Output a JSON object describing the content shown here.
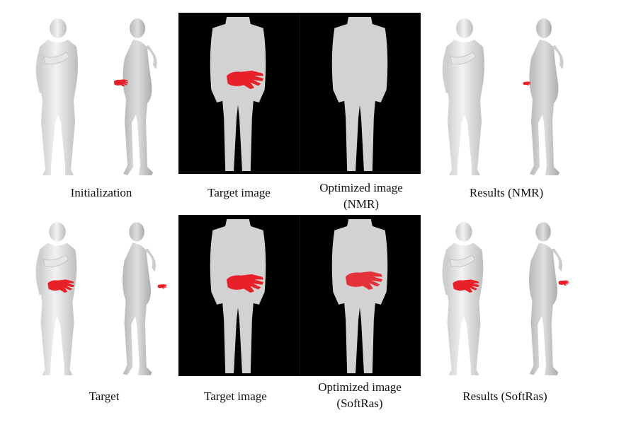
{
  "row1": {
    "captions": {
      "initialization": "Initialization",
      "target_image": "Target image",
      "optimized_line1": "Optimized image",
      "optimized_line2": "(NMR)",
      "results": "Results (NMR)"
    }
  },
  "row2": {
    "captions": {
      "target": "Target",
      "target_image": "Target image",
      "optimized_line1": "Optimized image",
      "optimized_line2": "(SoftRas)",
      "results": "Results (SoftRas)"
    }
  },
  "colors": {
    "body": "#d9d9d9",
    "hand": "#e8202a",
    "background": "#000000"
  }
}
